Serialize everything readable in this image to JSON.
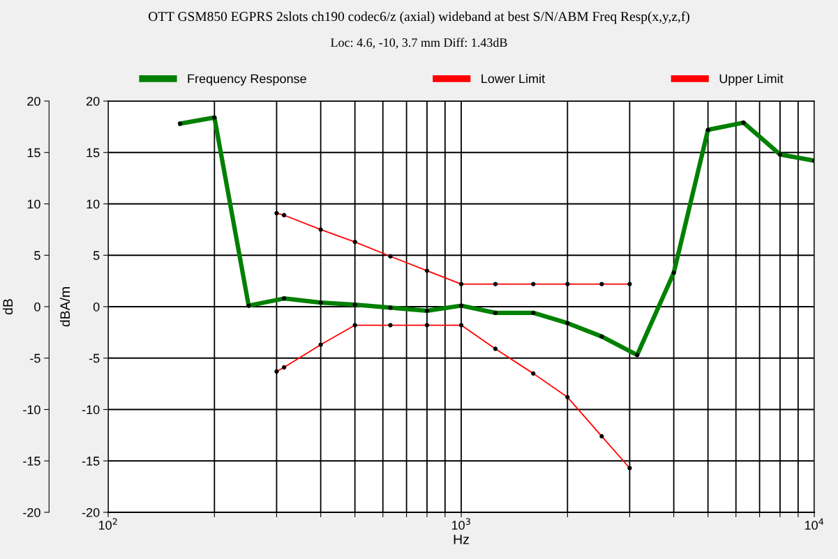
{
  "chart_data": {
    "type": "line",
    "title": "OTT GSM850 EGPRS 2slots ch190 codec6/z (axial) wideband at best S/N/ABM Freq Resp(x,y,z,f)",
    "subtitle": "Loc: 4.6, -10, 3.7 mm Diff: 1.43dB",
    "xlabel": "Hz",
    "ylabel": "dB",
    "y2label": "dBA/m",
    "log": "x",
    "grid": true,
    "legend": "top",
    "marker": "circle",
    "line_style": "solid",
    "xlim": [
      100,
      10000
    ],
    "xticks": [
      {
        "value": 100,
        "label": "10$^{2}$"
      },
      {
        "value": 200,
        "label": null
      },
      {
        "value": 300,
        "label": null
      },
      {
        "value": 400,
        "label": null
      },
      {
        "value": 500,
        "label": null
      },
      {
        "value": 600,
        "label": null
      },
      {
        "value": 700,
        "label": null
      },
      {
        "value": 800,
        "label": null
      },
      {
        "value": 900,
        "label": null
      },
      {
        "value": 1000,
        "label": "10$^{3}$"
      },
      {
        "value": 2000,
        "label": null
      },
      {
        "value": 3000,
        "label": null
      },
      {
        "value": 4000,
        "label": null
      },
      {
        "value": 5000,
        "label": null
      },
      {
        "value": 6000,
        "label": null
      },
      {
        "value": 7000,
        "label": null
      },
      {
        "value": 8000,
        "label": null
      },
      {
        "value": 9000,
        "label": null
      },
      {
        "value": 10000,
        "label": "10$^{4}$"
      }
    ],
    "ylim": [
      -20,
      20
    ],
    "yticks": [
      -20,
      -15,
      -10,
      -5,
      0,
      5,
      10,
      15,
      20
    ],
    "y2lim": [
      -20,
      20
    ],
    "y2ticks": [
      -20,
      -15,
      -10,
      -5,
      0,
      5,
      10,
      15,
      20
    ],
    "series": [
      {
        "name": "Frequency Response",
        "color": "#008000",
        "x": [
          160,
          200,
          250,
          315,
          400,
          500,
          630,
          800,
          1000,
          1250,
          1600,
          2000,
          2500,
          3150,
          4000,
          5000,
          6300,
          8000,
          10000
        ],
        "values": [
          17.8,
          18.4,
          0.1,
          0.8,
          0.4,
          0.2,
          -0.1,
          -0.4,
          0.1,
          -0.6,
          -0.6,
          -1.6,
          -2.9,
          -4.7,
          3.3,
          17.2,
          17.9,
          14.8,
          14.2
        ]
      },
      {
        "name": "Lower Limit",
        "color": "#ff0000",
        "x": [
          300,
          315,
          400,
          500,
          630,
          800,
          1000,
          1250,
          1600,
          2000,
          2500,
          3000
        ],
        "values": [
          -6.3,
          -5.9,
          -3.7,
          -1.8,
          -1.8,
          -1.8,
          -1.8,
          -4.1,
          -6.5,
          -8.8,
          -12.6,
          -15.7
        ]
      },
      {
        "name": "Upper Limit",
        "color": "#ff0000",
        "x": [
          300,
          315,
          400,
          500,
          630,
          800,
          1000,
          1250,
          1600,
          2000,
          2500,
          3000
        ],
        "values": [
          9.1,
          8.9,
          7.5,
          6.3,
          4.9,
          3.5,
          2.2,
          2.2,
          2.2,
          2.2,
          2.2,
          2.2
        ]
      }
    ]
  }
}
